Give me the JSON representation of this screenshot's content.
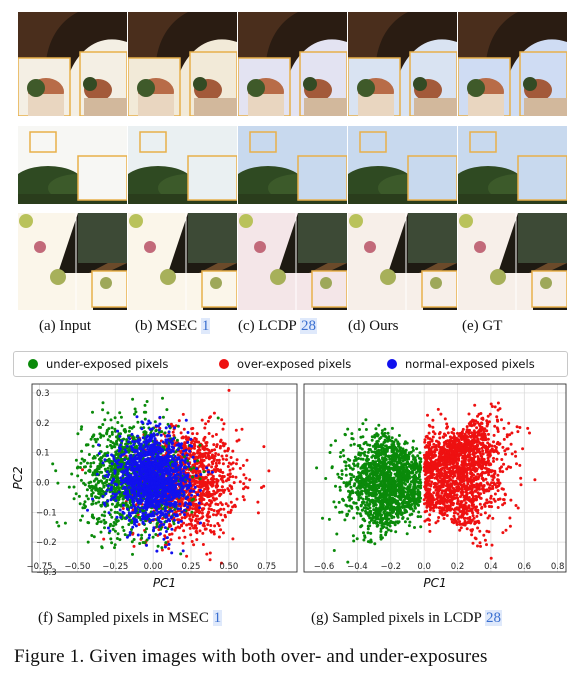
{
  "image_captions": [
    "(a) Input",
    "(b) MSEC [1]",
    "(c) LCDP [28]",
    "(d) Ours",
    "(e) GT"
  ],
  "image_caption_parts": [
    {
      "text": "(a) Input",
      "ref": ""
    },
    {
      "text": "(b) MSEC ",
      "ref": "1"
    },
    {
      "text": "(c) LCDP ",
      "ref": "28"
    },
    {
      "text": "(d) Ours",
      "ref": ""
    },
    {
      "text": "(e) GT",
      "ref": ""
    }
  ],
  "legend": {
    "items": [
      {
        "label": "under-exposed pixels",
        "color": "#0a8a0a"
      },
      {
        "label": "over-exposed pixels",
        "color": "#ee1111"
      },
      {
        "label": "normal-exposed pixels",
        "color": "#1111ee"
      }
    ]
  },
  "colors": {
    "under": "#0a8a0a",
    "over": "#ee1111",
    "normal": "#1111ee",
    "accent_box": "#e8b04a",
    "ref_link": "#3a6fd0"
  },
  "chart_data": [
    {
      "type": "scatter",
      "xlabel": "PC1",
      "ylabel": "PC2",
      "xticks": [
        "−0.75",
        "−0.50",
        "−0.25",
        "0.00",
        "0.25",
        "0.50",
        "0.75"
      ],
      "yticks": [
        "−0.3",
        "−0.2",
        "−0.1",
        "0.0",
        "0.1",
        "0.2",
        "0.3"
      ],
      "xlim": [
        -0.8,
        0.95
      ],
      "ylim": [
        -0.3,
        0.33
      ],
      "grid": true,
      "series": [
        {
          "name": "under-exposed pixels",
          "center": [
            -0.15,
            0.02
          ],
          "spread": [
            0.16,
            0.09
          ]
        },
        {
          "name": "over-exposed pixels",
          "center": [
            0.22,
            0.0
          ],
          "spread": [
            0.17,
            0.09
          ]
        },
        {
          "name": "normal-exposed pixels",
          "center": [
            0.0,
            0.01
          ],
          "spread": [
            0.12,
            0.07
          ]
        }
      ]
    },
    {
      "type": "scatter",
      "xlabel": "PC1",
      "ylabel": "",
      "xticks": [
        "−0.6",
        "−0.4",
        "−0.2",
        "0.0",
        "0.2",
        "0.4",
        "0.6",
        "0.8"
      ],
      "xlim": [
        -0.72,
        0.85
      ],
      "ylim": [
        -0.3,
        0.33
      ],
      "grid": true,
      "series": [
        {
          "name": "under-exposed pixels",
          "center": [
            -0.22,
            0.0
          ],
          "spread": [
            0.12,
            0.09
          ]
        },
        {
          "name": "over-exposed pixels",
          "center": [
            0.2,
            0.05
          ],
          "spread": [
            0.14,
            0.11
          ]
        }
      ]
    }
  ],
  "sub_captions": [
    {
      "text": "(f)   Sampled pixels in MSEC ",
      "ref": "1"
    },
    {
      "text": "(g) Sampled pixels in LCDP ",
      "ref": "28"
    }
  ],
  "figure_caption": "Figure 1.  Given images with both over- and under-exposures"
}
